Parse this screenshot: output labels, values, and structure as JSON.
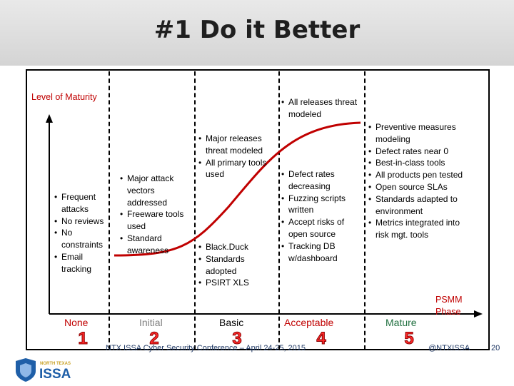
{
  "slide": {
    "title": "#1 Do it Better",
    "axis_label": "Level of Maturity",
    "phase_label": "PSMM Phase"
  },
  "stages": [
    {
      "name": "None",
      "number": "1",
      "items": [
        "Frequent attacks",
        "No reviews",
        "No constraints",
        "Email tracking"
      ]
    },
    {
      "name": "Initial",
      "number": "2",
      "items": [
        "Major attack vectors addressed",
        "Freeware tools used",
        "Standard awareness"
      ]
    },
    {
      "name": "Basic",
      "number": "3",
      "items_upper": [
        "Major releases threat modeled",
        "All primary tools used"
      ],
      "items_lower": [
        "Black.Duck",
        "Standards adopted",
        "PSIRT XLS"
      ]
    },
    {
      "name": "Acceptable",
      "number": "4",
      "items_upper": [
        "All releases threat modeled"
      ],
      "items_lower": [
        "Defect rates decreasing",
        "Fuzzing scripts written",
        "Accept risks of open source",
        "Tracking DB w/dashboard"
      ]
    },
    {
      "name": "Mature",
      "number": "5",
      "items": [
        "Preventive measures modeling",
        "Defect rates near 0",
        "Best-in-class tools",
        "All products pen tested",
        "Open source SLAs",
        "Standards adapted to environment",
        "Metrics integrated into risk mgt. tools"
      ]
    }
  ],
  "footer": {
    "conference": "NTX ISSA Cyber Security Conference – April 24-25, 2015",
    "handle": "@NTXISSA",
    "page": "20",
    "logo_top": "NORTH TEXAS",
    "logo_main": "ISSA"
  },
  "colors": {
    "accent_red": "#c00000",
    "curve": "#c00000",
    "footer_blue": "#1f3864",
    "logo_blue": "#1f5fa8"
  }
}
